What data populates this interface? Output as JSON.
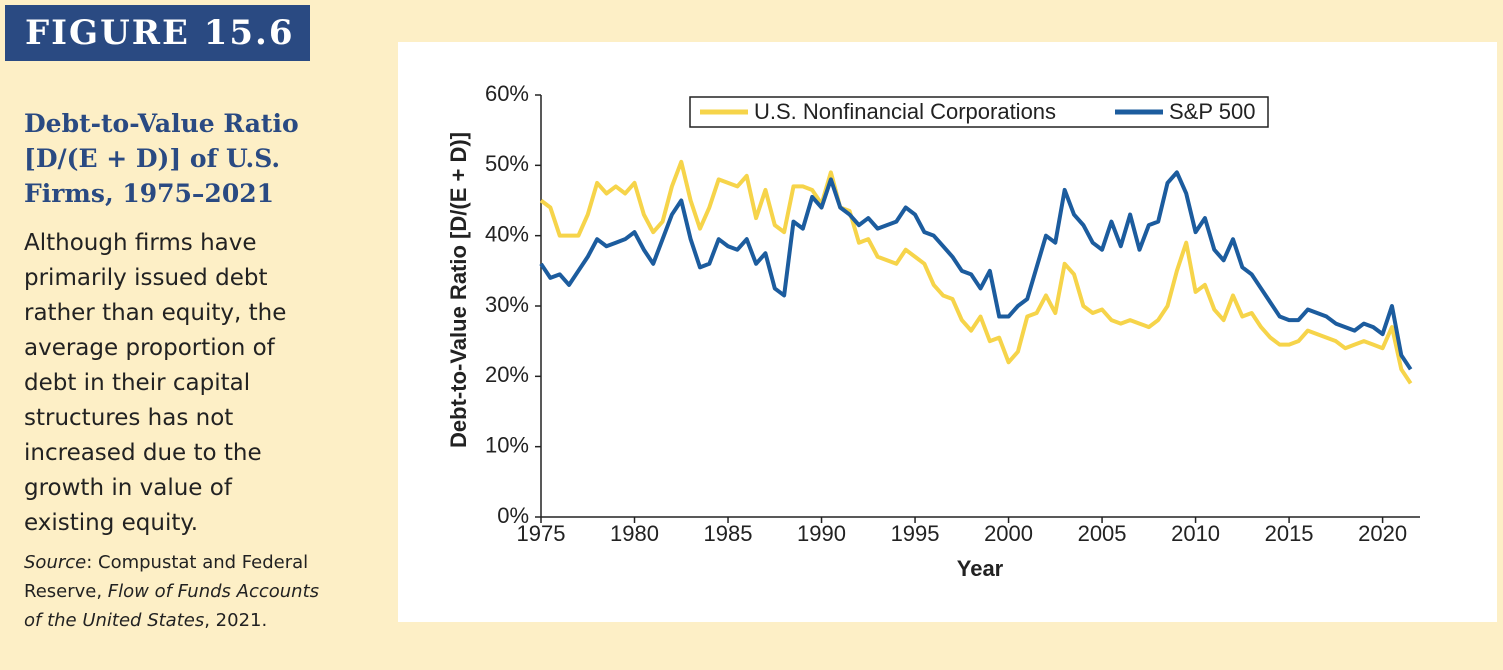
{
  "figure": {
    "label": "FIGURE 15.6",
    "title": "Debt-to-Value Ratio [D/(E + D)] of U.S. Firms, 1975–2021",
    "description": "Although firms have primarily issued debt rather than equity, the average proportion of debt in their capital structures has not increased due to the growth in value of existing equity.",
    "source_label": "Source",
    "source_text": ": Compustat and Federal Reserve, ",
    "source_publication": "Flow of Funds Accounts of the United States",
    "source_year": ", 2021."
  },
  "chart_data": {
    "type": "line",
    "x_label": "Year",
    "y_label": "Debt-to-Value Ratio [D/(E + D)]",
    "x": [
      1975,
      1975.5,
      1976,
      1976.5,
      1977,
      1977.5,
      1978,
      1978.5,
      1979,
      1979.5,
      1980,
      1980.5,
      1981,
      1981.5,
      1982,
      1982.5,
      1983,
      1983.5,
      1984,
      1984.5,
      1985,
      1985.5,
      1986,
      1986.5,
      1987,
      1987.5,
      1988,
      1988.5,
      1989,
      1989.5,
      1990,
      1990.5,
      1991,
      1991.5,
      1992,
      1992.5,
      1993,
      1993.5,
      1994,
      1994.5,
      1995,
      1995.5,
      1996,
      1996.5,
      1997,
      1997.5,
      1998,
      1998.5,
      1999,
      1999.5,
      2000,
      2000.5,
      2001,
      2001.5,
      2002,
      2002.5,
      2003,
      2003.5,
      2004,
      2004.5,
      2005,
      2005.5,
      2006,
      2006.5,
      2007,
      2007.5,
      2008,
      2008.5,
      2009,
      2009.5,
      2010,
      2010.5,
      2011,
      2011.5,
      2012,
      2012.5,
      2013,
      2013.5,
      2014,
      2014.5,
      2015,
      2015.5,
      2016,
      2016.5,
      2017,
      2017.5,
      2018,
      2018.5,
      2019,
      2019.5,
      2020,
      2020.5,
      2021,
      2021.5
    ],
    "series": [
      {
        "name": "U.S. Nonfinancial Corporations",
        "color": "#f6d44a",
        "values": [
          45,
          44,
          40,
          40,
          40,
          43,
          47.5,
          46,
          47,
          46,
          47.5,
          43,
          40.5,
          42,
          47,
          50.5,
          45,
          41,
          44,
          48,
          47.5,
          47,
          48.5,
          42.5,
          46.5,
          41.5,
          40.5,
          47,
          47,
          46.5,
          44.5,
          49,
          44,
          43.5,
          39,
          39.5,
          37,
          36.5,
          36,
          38,
          37,
          36,
          33,
          31.5,
          31,
          28,
          26.5,
          28.5,
          25,
          25.5,
          22,
          23.5,
          28.5,
          29,
          31.5,
          29,
          36,
          34.5,
          30,
          29,
          29.5,
          28,
          27.5,
          28,
          27.5,
          27,
          28,
          30,
          35,
          39,
          32,
          33,
          29.5,
          28,
          31.5,
          28.5,
          29,
          27,
          25.5,
          24.5,
          24.5,
          25,
          26.5,
          26,
          25.5,
          25,
          24,
          24.5,
          25,
          24.5,
          24,
          27,
          21,
          19
        ]
      },
      {
        "name": "S&P 500",
        "color": "#1c5c9e",
        "values": [
          36,
          34,
          34.5,
          33,
          35,
          37,
          39.5,
          38.5,
          39,
          39.5,
          40.5,
          38,
          36,
          39.5,
          43,
          45,
          39.5,
          35.5,
          36,
          39.5,
          38.5,
          38,
          39.5,
          36,
          37.5,
          32.5,
          31.5,
          42,
          41,
          45.5,
          44,
          48,
          44,
          43,
          41.5,
          42.5,
          41,
          41.5,
          42,
          44,
          43,
          40.5,
          40,
          38.5,
          37,
          35,
          34.5,
          32.5,
          35,
          28.5,
          28.5,
          30,
          31,
          35.5,
          40,
          39,
          46.5,
          43,
          41.5,
          39,
          38,
          42,
          38.5,
          43,
          38,
          41.5,
          42,
          47.5,
          49,
          46,
          40.5,
          42.5,
          38,
          36.5,
          39.5,
          35.5,
          34.5,
          32.5,
          30.5,
          28.5,
          28,
          28,
          29.5,
          29,
          28.5,
          27.5,
          27,
          26.5,
          27.5,
          27,
          26,
          30,
          23,
          21
        ]
      }
    ],
    "xlim": [
      1975,
      2022
    ],
    "xticks": [
      1975,
      1980,
      1985,
      1990,
      1995,
      2000,
      2005,
      2010,
      2015,
      2020
    ],
    "ylim": [
      0,
      60
    ],
    "yticks": [
      {
        "value": 0,
        "label": "0%"
      },
      {
        "value": 10,
        "label": "10%"
      },
      {
        "value": 20,
        "label": "20%"
      },
      {
        "value": 30,
        "label": "30%"
      },
      {
        "value": 40,
        "label": "40%"
      },
      {
        "value": 50,
        "label": "50%"
      },
      {
        "value": 60,
        "label": "60%"
      }
    ],
    "grid": false,
    "legend": "top"
  }
}
